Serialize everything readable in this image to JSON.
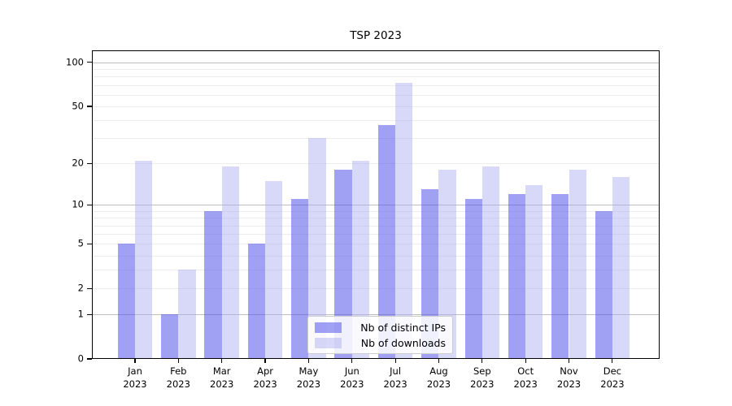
{
  "chart_data": {
    "type": "bar",
    "title": "TSP 2023",
    "year_label": "2023",
    "categories": [
      "Jan",
      "Feb",
      "Mar",
      "Apr",
      "May",
      "Jun",
      "Jul",
      "Aug",
      "Sep",
      "Oct",
      "Nov",
      "Dec"
    ],
    "series": [
      {
        "name": "Nb of distinct IPs",
        "color": "rgba(90,90,235,0.57)",
        "values": [
          5,
          1,
          9,
          5,
          11,
          18,
          37,
          13,
          11,
          12,
          12,
          9
        ]
      },
      {
        "name": "Nb of downloads",
        "color": "rgba(170,170,240,0.46)",
        "values": [
          21,
          3,
          19,
          15,
          30,
          21,
          73,
          18,
          19,
          14,
          18,
          16
        ]
      }
    ],
    "xlabel": "",
    "ylabel": "",
    "y_scale": "log1p",
    "y_ticks": [
      0,
      1,
      2,
      5,
      10,
      20,
      50,
      100
    ],
    "major_gridlines": [
      1,
      10,
      100
    ],
    "minor_gridlines": [
      2,
      3,
      4,
      5,
      6,
      7,
      8,
      9,
      20,
      30,
      40,
      50,
      60,
      70,
      80,
      90
    ],
    "ylim": [
      0,
      121
    ],
    "grid": true,
    "legend_position": "lower center",
    "colors": {
      "grid_major": "#bdbdbd",
      "grid_minor": "#ececec",
      "axis": "#000000",
      "legend_border": "#cccccc"
    }
  }
}
